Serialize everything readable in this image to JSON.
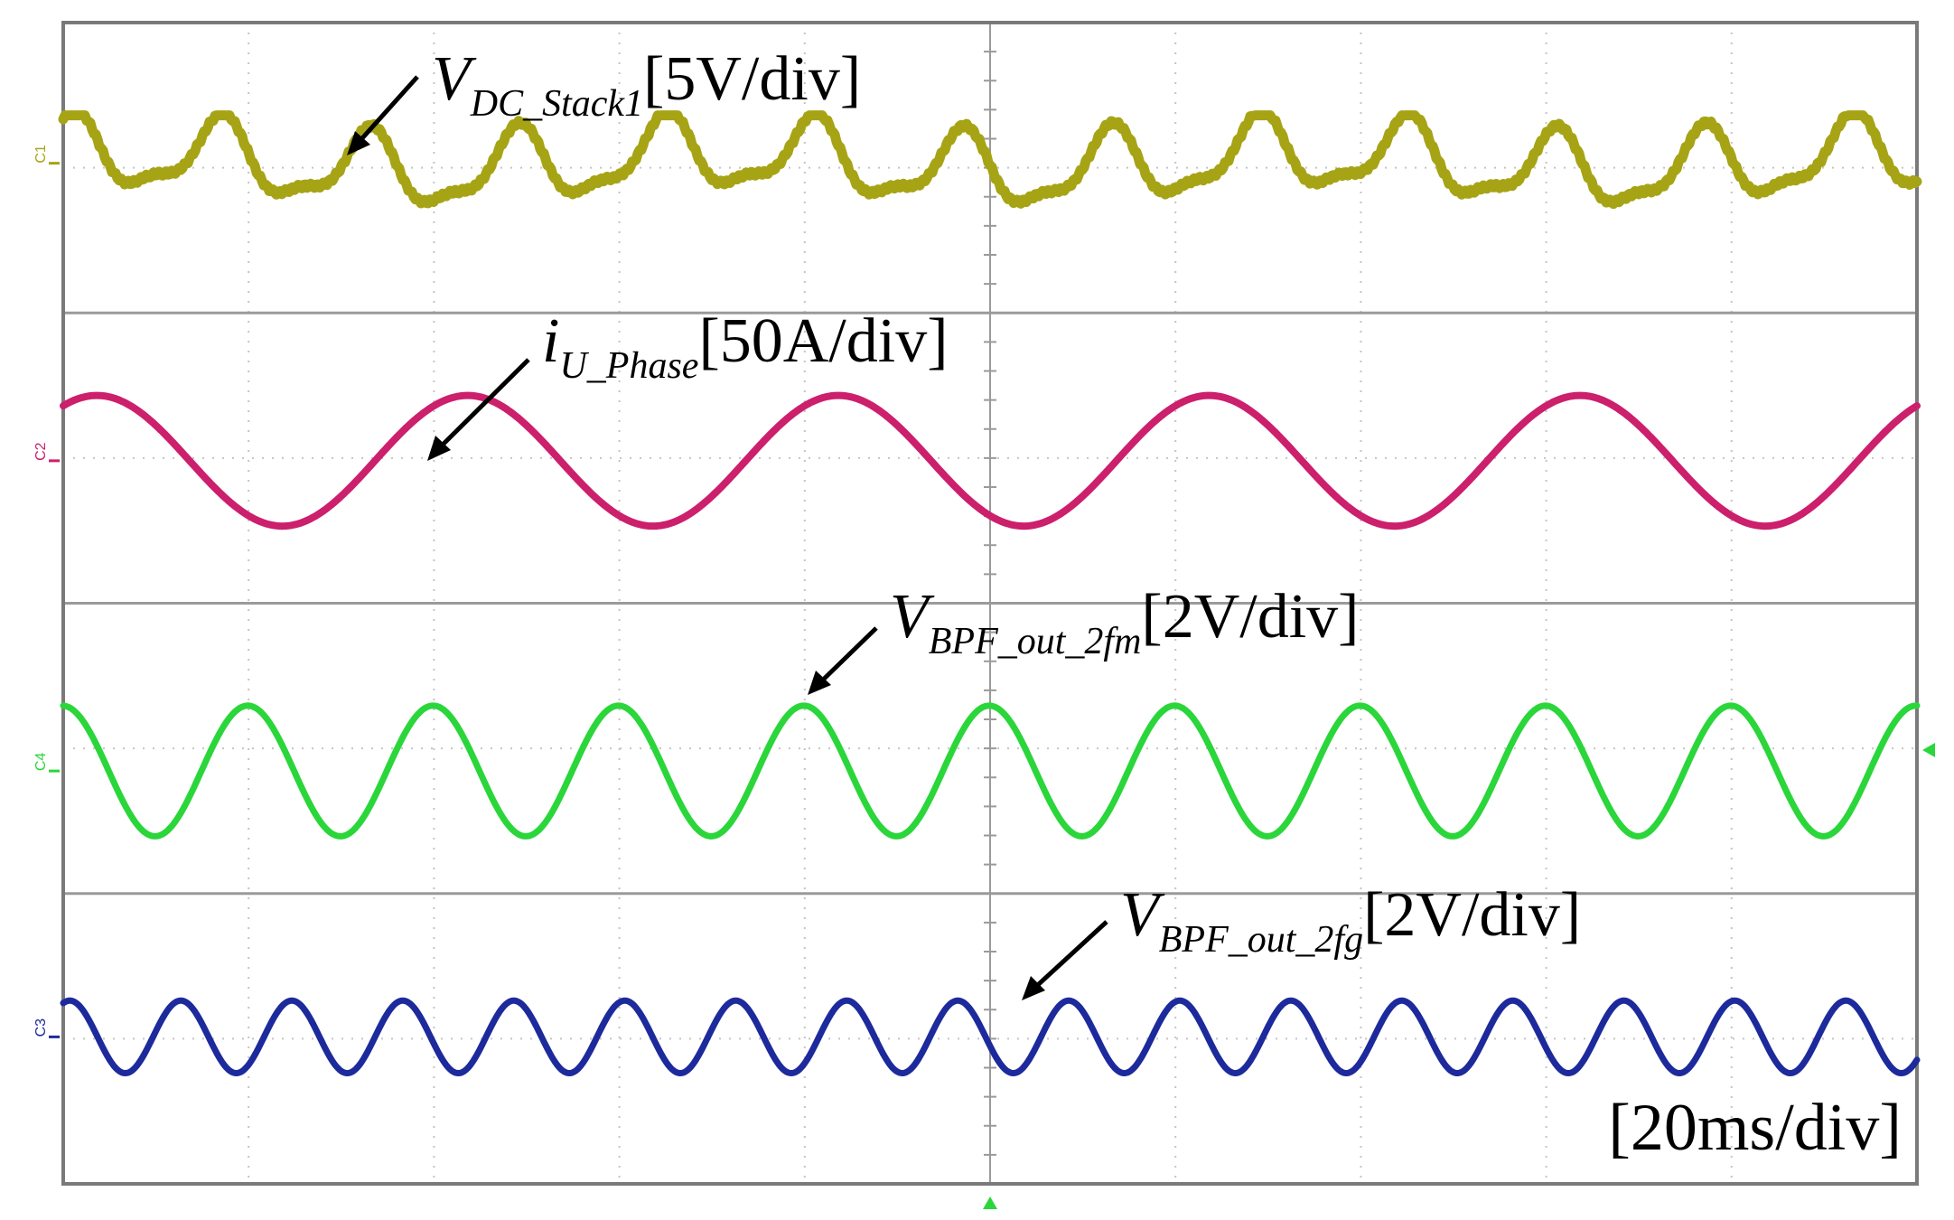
{
  "chart_data": {
    "type": "line",
    "grid": true,
    "time_scale": "[20ms/div]",
    "x_divisions": 10,
    "y_divisions": 8,
    "colors": {
      "ch1": "#a6a415",
      "ch2": "#cc1f6c",
      "ch3": "#1d2a9c",
      "ch4": "#2ad63a"
    },
    "channels": [
      {
        "id": "ch1",
        "marker": "C1",
        "label_main": "V",
        "label_sub": "DC_Stack1",
        "scale": "[5V/div]",
        "waveform": "ripple",
        "cycles_per_division": 1.25,
        "amplitude_div": 0.3
      },
      {
        "id": "ch2",
        "marker": "C2",
        "label_main": "i",
        "label_sub": "U_Phase",
        "scale": "[50A/div]",
        "waveform": "sine",
        "cycles_per_division": 0.5,
        "amplitude_div": 0.45
      },
      {
        "id": "ch4",
        "marker": "C4",
        "label_main": "V",
        "label_sub": "BPF_out_2fm",
        "scale": "[2V/div]",
        "waveform": "sine",
        "cycles_per_division": 1.0,
        "amplitude_div": 0.45
      },
      {
        "id": "ch3",
        "marker": "C3",
        "label_main": "V",
        "label_sub": "BPF_out_2fg",
        "scale": "[2V/div]",
        "waveform": "sine",
        "cycles_per_division": 1.67,
        "amplitude_div": 0.25
      }
    ]
  }
}
